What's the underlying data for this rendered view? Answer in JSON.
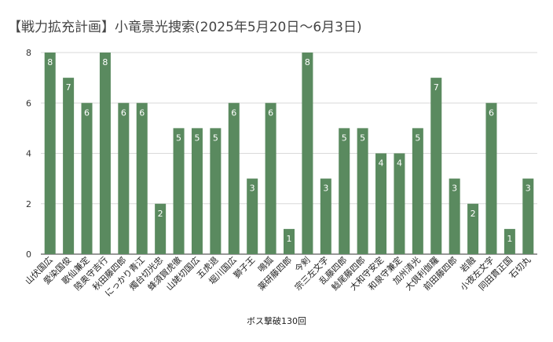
{
  "chart_data": {
    "type": "bar",
    "title": "【戦力拡充計画】小竜景光捜索(2025年5月20日～6月3日)",
    "xlabel": "ボス撃破130回",
    "ylabel": "",
    "ylim": [
      0,
      8
    ],
    "yticks": [
      0,
      2,
      4,
      6,
      8
    ],
    "grid": true,
    "categories": [
      "山伏国広",
      "愛染国俊",
      "歌仙兼定",
      "陸奥守吉行",
      "秋田藤四郎",
      "にっかり青江",
      "燭台切光忠",
      "蜂須賀虎徹",
      "山姥切国広",
      "五虎退",
      "堀川国広",
      "獅子王",
      "鳴狐",
      "薬研藤四郎",
      "今剣",
      "宗三左文字",
      "乱藤四郎",
      "鯰尾藤四郎",
      "大和守安定",
      "和泉守兼定",
      "加州清光",
      "大倶利伽羅",
      "前田藤四郎",
      "岩融",
      "小夜左文字",
      "同田貫正国",
      "石切丸"
    ],
    "values": [
      8,
      7,
      6,
      8,
      6,
      6,
      2,
      5,
      5,
      5,
      6,
      3,
      6,
      1,
      8,
      3,
      5,
      5,
      4,
      4,
      5,
      7,
      3,
      2,
      6,
      1,
      3
    ],
    "bar_color": "#5a8a5f"
  }
}
